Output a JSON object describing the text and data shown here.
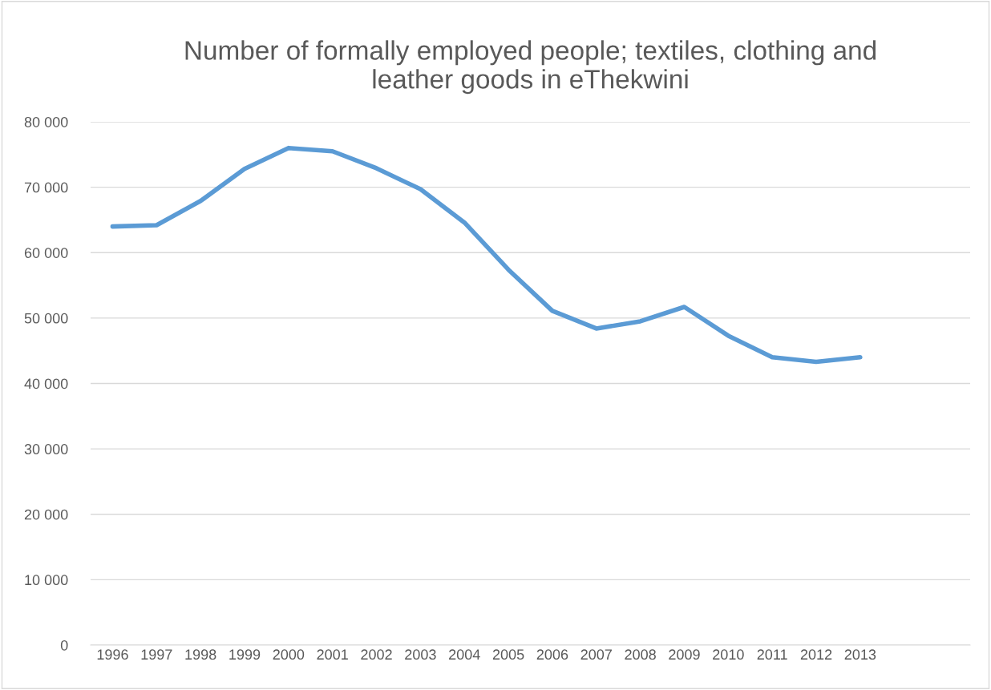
{
  "chart_data": {
    "type": "line",
    "title": "Number of formally employed people; textiles, clothing and\nleather goods in eThekwini",
    "categories": [
      "1996",
      "1997",
      "1998",
      "1999",
      "2000",
      "2001",
      "2002",
      "2003",
      "2004",
      "2005",
      "2006",
      "2007",
      "2008",
      "2009",
      "2010",
      "2011",
      "2012",
      "2013",
      null,
      null
    ],
    "series": [
      {
        "color": "#5b9bd5",
        "values": [
          64000,
          64200,
          67900,
          72800,
          76000,
          75500,
          72900,
          69700,
          64600,
          57400,
          51100,
          48400,
          49500,
          51700,
          47300,
          44000,
          43300,
          44000,
          null,
          null
        ]
      }
    ],
    "ylim": [
      0,
      80000
    ],
    "yticks": [
      0,
      {
        "value": 10000,
        "label": "10 000"
      },
      {
        "value": 20000,
        "label": "20 000"
      },
      {
        "value": 30000,
        "label": "30 000"
      },
      {
        "value": 40000,
        "label": "40 000"
      },
      {
        "value": 50000,
        "label": "50 000"
      },
      {
        "value": 60000,
        "label": "60 000"
      },
      {
        "value": 70000,
        "label": "70 000"
      },
      {
        "value": 80000,
        "label": "80 000"
      }
    ],
    "grid": "y",
    "line_style": "solid"
  }
}
